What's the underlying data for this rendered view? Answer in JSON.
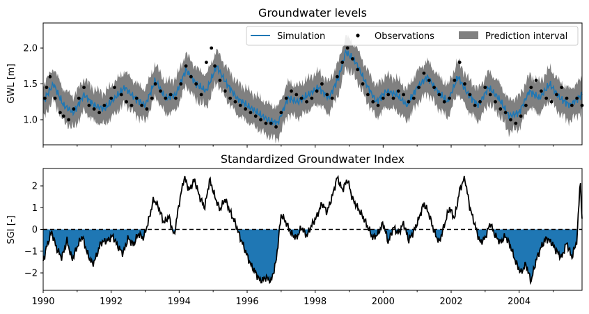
{
  "chart_data": [
    {
      "type": "line",
      "title": "Groundwater levels",
      "xlabel": "",
      "ylabel": "GWL [m]",
      "xlim": [
        1990.0,
        2005.85
      ],
      "ylim": [
        0.65,
        2.35
      ],
      "yticks": [
        1.0,
        1.5,
        2.0
      ],
      "ytick_labels": [
        "1.0",
        "1.5",
        "2.0"
      ],
      "legend_position": "top-right",
      "legend": [
        "Simulation",
        "Observations",
        "Prediction interval"
      ],
      "colors": {
        "simulation": "#1f77b4",
        "observations": "#000000",
        "interval": "#808080"
      },
      "series": [
        {
          "name": "Simulation",
          "x": [
            1990.0,
            1990.3,
            1990.6,
            1990.9,
            1991.2,
            1991.5,
            1991.8,
            1992.1,
            1992.4,
            1992.7,
            1993.0,
            1993.3,
            1993.6,
            1993.9,
            1994.2,
            1994.5,
            1994.8,
            1995.1,
            1995.4,
            1995.7,
            1996.0,
            1996.3,
            1996.6,
            1996.9,
            1997.2,
            1997.5,
            1997.8,
            1998.1,
            1998.4,
            1998.7,
            1998.9,
            1999.2,
            1999.5,
            1999.8,
            2000.1,
            2000.4,
            2000.7,
            2001.0,
            2001.3,
            2001.6,
            2001.9,
            2002.2,
            2002.5,
            2002.8,
            2003.1,
            2003.4,
            2003.7,
            2004.0,
            2004.3,
            2004.6,
            2004.9,
            2005.2,
            2005.5,
            2005.85
          ],
          "values": [
            1.25,
            1.5,
            1.2,
            1.1,
            1.35,
            1.2,
            1.15,
            1.3,
            1.45,
            1.3,
            1.2,
            1.55,
            1.3,
            1.35,
            1.7,
            1.5,
            1.4,
            1.75,
            1.5,
            1.3,
            1.2,
            1.1,
            1.0,
            0.95,
            1.3,
            1.25,
            1.35,
            1.45,
            1.3,
            1.6,
            1.95,
            1.8,
            1.5,
            1.25,
            1.4,
            1.35,
            1.2,
            1.45,
            1.6,
            1.4,
            1.25,
            1.6,
            1.35,
            1.2,
            1.45,
            1.3,
            1.05,
            1.1,
            1.4,
            1.3,
            1.5,
            1.3,
            1.2,
            1.35
          ]
        },
        {
          "name": "Observations",
          "x": [
            1990.05,
            1990.1,
            1990.2,
            1990.35,
            1990.5,
            1990.6,
            1990.75,
            1990.9,
            1991.05,
            1991.2,
            1991.35,
            1991.5,
            1991.65,
            1991.8,
            1992.0,
            1992.1,
            1992.3,
            1992.45,
            1992.6,
            1992.75,
            1992.9,
            1993.05,
            1993.2,
            1993.3,
            1993.45,
            1993.6,
            1993.75,
            1993.9,
            1994.05,
            1994.2,
            1994.35,
            1994.5,
            1994.65,
            1994.8,
            1994.95,
            1995.05,
            1995.2,
            1995.35,
            1995.5,
            1995.65,
            1995.8,
            1995.95,
            1996.1,
            1996.25,
            1996.4,
            1996.55,
            1996.7,
            1996.85,
            1997.0,
            1997.15,
            1997.3,
            1997.45,
            1997.6,
            1997.75,
            1997.9,
            1998.05,
            1998.2,
            1998.35,
            1998.5,
            1998.65,
            1998.8,
            1998.95,
            1999.1,
            1999.25,
            1999.4,
            1999.55,
            1999.7,
            1999.85,
            2000.0,
            2000.15,
            2000.3,
            2000.45,
            2000.6,
            2000.75,
            2000.9,
            2001.05,
            2001.2,
            2001.35,
            2001.5,
            2001.65,
            2001.8,
            2001.95,
            2002.1,
            2002.25,
            2002.4,
            2002.55,
            2002.7,
            2002.85,
            2003.0,
            2003.15,
            2003.3,
            2003.45,
            2003.6,
            2003.75,
            2003.9,
            2004.05,
            2004.2,
            2004.35,
            2004.5,
            2004.65,
            2004.8,
            2004.95,
            2005.1,
            2005.25,
            2005.4,
            2005.55,
            2005.7,
            2005.85
          ],
          "values": [
            1.3,
            1.45,
            1.6,
            1.3,
            1.1,
            1.05,
            1.0,
            1.15,
            1.3,
            1.45,
            1.2,
            1.15,
            1.1,
            1.2,
            1.3,
            1.45,
            1.35,
            1.25,
            1.2,
            1.3,
            1.2,
            1.15,
            1.3,
            1.5,
            1.4,
            1.3,
            1.35,
            1.3,
            1.5,
            1.75,
            1.6,
            1.5,
            1.35,
            1.8,
            2.0,
            1.75,
            1.55,
            1.4,
            1.3,
            1.25,
            1.2,
            1.15,
            1.1,
            1.05,
            1.0,
            0.95,
            0.95,
            0.9,
            1.1,
            1.3,
            1.4,
            1.35,
            1.3,
            1.25,
            1.3,
            1.4,
            1.5,
            1.35,
            1.3,
            1.6,
            1.8,
            2.0,
            1.85,
            1.7,
            1.5,
            1.35,
            1.25,
            1.2,
            1.3,
            1.35,
            1.3,
            1.4,
            1.35,
            1.25,
            1.3,
            1.45,
            1.65,
            1.55,
            1.45,
            1.35,
            1.25,
            1.3,
            1.55,
            1.8,
            1.5,
            1.35,
            1.2,
            1.25,
            1.45,
            1.35,
            1.25,
            1.15,
            1.1,
            1.0,
            0.95,
            1.05,
            1.2,
            1.45,
            1.55,
            1.4,
            1.3,
            1.25,
            1.35,
            1.45,
            1.3,
            1.2,
            1.3,
            1.2
          ]
        }
      ]
    },
    {
      "type": "area",
      "title": "Standardized Groundwater Index",
      "xlabel": "",
      "ylabel": "SGI [-]",
      "xlim": [
        1990.0,
        2005.85
      ],
      "ylim": [
        -2.8,
        2.8
      ],
      "yticks": [
        -2,
        -1,
        0,
        1,
        2
      ],
      "ytick_labels": [
        "−2",
        "−1",
        "0",
        "1",
        "2"
      ],
      "xticks": [
        1990,
        1992,
        1994,
        1996,
        1998,
        2000,
        2002,
        2004
      ],
      "xtick_labels": [
        "1990",
        "1992",
        "1994",
        "1996",
        "1998",
        "2000",
        "2002",
        "2004"
      ],
      "grid": false,
      "colors": {
        "line": "#000000",
        "fill": "#1f77b4",
        "zero_line": "#000000"
      },
      "series": [
        {
          "name": "",
          "x": [
            1990.0,
            1990.1,
            1990.25,
            1990.4,
            1990.55,
            1990.7,
            1990.85,
            1991.0,
            1991.15,
            1991.3,
            1991.45,
            1991.55,
            1991.7,
            1991.9,
            1992.05,
            1992.2,
            1992.35,
            1992.5,
            1992.65,
            1992.8,
            1992.95,
            1993.1,
            1993.25,
            1993.4,
            1993.55,
            1993.7,
            1993.85,
            1994.0,
            1994.15,
            1994.3,
            1994.45,
            1994.6,
            1994.75,
            1994.9,
            1995.05,
            1995.2,
            1995.35,
            1995.5,
            1995.65,
            1995.8,
            1995.95,
            1996.1,
            1996.25,
            1996.4,
            1996.55,
            1996.7,
            1996.85,
            1997.0,
            1997.15,
            1997.3,
            1997.45,
            1997.6,
            1997.75,
            1997.9,
            1998.05,
            1998.2,
            1998.35,
            1998.5,
            1998.65,
            1998.8,
            1998.95,
            1999.1,
            1999.25,
            1999.4,
            1999.55,
            1999.7,
            1999.85,
            2000.0,
            2000.15,
            2000.3,
            2000.45,
            2000.6,
            2000.75,
            2000.9,
            2001.05,
            2001.2,
            2001.35,
            2001.5,
            2001.65,
            2001.8,
            2001.95,
            2002.1,
            2002.25,
            2002.4,
            2002.55,
            2002.7,
            2002.85,
            2003.0,
            2003.15,
            2003.3,
            2003.45,
            2003.6,
            2003.75,
            2003.9,
            2004.05,
            2004.2,
            2004.35,
            2004.5,
            2004.65,
            2004.8,
            2004.95,
            2005.1,
            2005.25,
            2005.4,
            2005.55,
            2005.7,
            2005.8,
            2005.85
          ],
          "values": [
            -1.5,
            -0.8,
            -0.1,
            -0.9,
            -1.3,
            -0.5,
            -1.4,
            -0.8,
            -0.3,
            -1.1,
            -1.6,
            -1.3,
            -0.6,
            -0.5,
            -0.3,
            -0.8,
            -1.1,
            -0.4,
            -0.7,
            -0.2,
            -0.4,
            0.4,
            1.4,
            1.0,
            0.3,
            0.6,
            -0.3,
            1.2,
            2.4,
            1.8,
            2.3,
            1.5,
            1.0,
            2.3,
            1.5,
            0.9,
            1.4,
            0.8,
            0.3,
            -0.4,
            -1.0,
            -1.6,
            -2.0,
            -2.4,
            -2.2,
            -2.4,
            -1.5,
            0.7,
            0.3,
            -0.2,
            -0.4,
            0.1,
            -0.3,
            0.2,
            0.6,
            1.2,
            0.8,
            1.5,
            2.4,
            1.8,
            2.3,
            1.4,
            1.0,
            0.6,
            0.1,
            -0.4,
            -0.2,
            0.3,
            -0.6,
            0.1,
            -0.2,
            0.3,
            -0.5,
            -0.1,
            0.5,
            1.2,
            0.7,
            -0.1,
            -0.6,
            0.2,
            1.0,
            0.5,
            1.8,
            2.4,
            1.0,
            0.2,
            -0.6,
            -0.4,
            0.3,
            -0.3,
            -0.6,
            -0.3,
            -0.8,
            -1.5,
            -2.0,
            -1.6,
            -2.4,
            -1.4,
            -0.8,
            -0.4,
            -0.6,
            -1.0,
            -1.3,
            -0.6,
            -1.3,
            -0.5,
            2.4,
            0.3
          ]
        }
      ]
    }
  ]
}
